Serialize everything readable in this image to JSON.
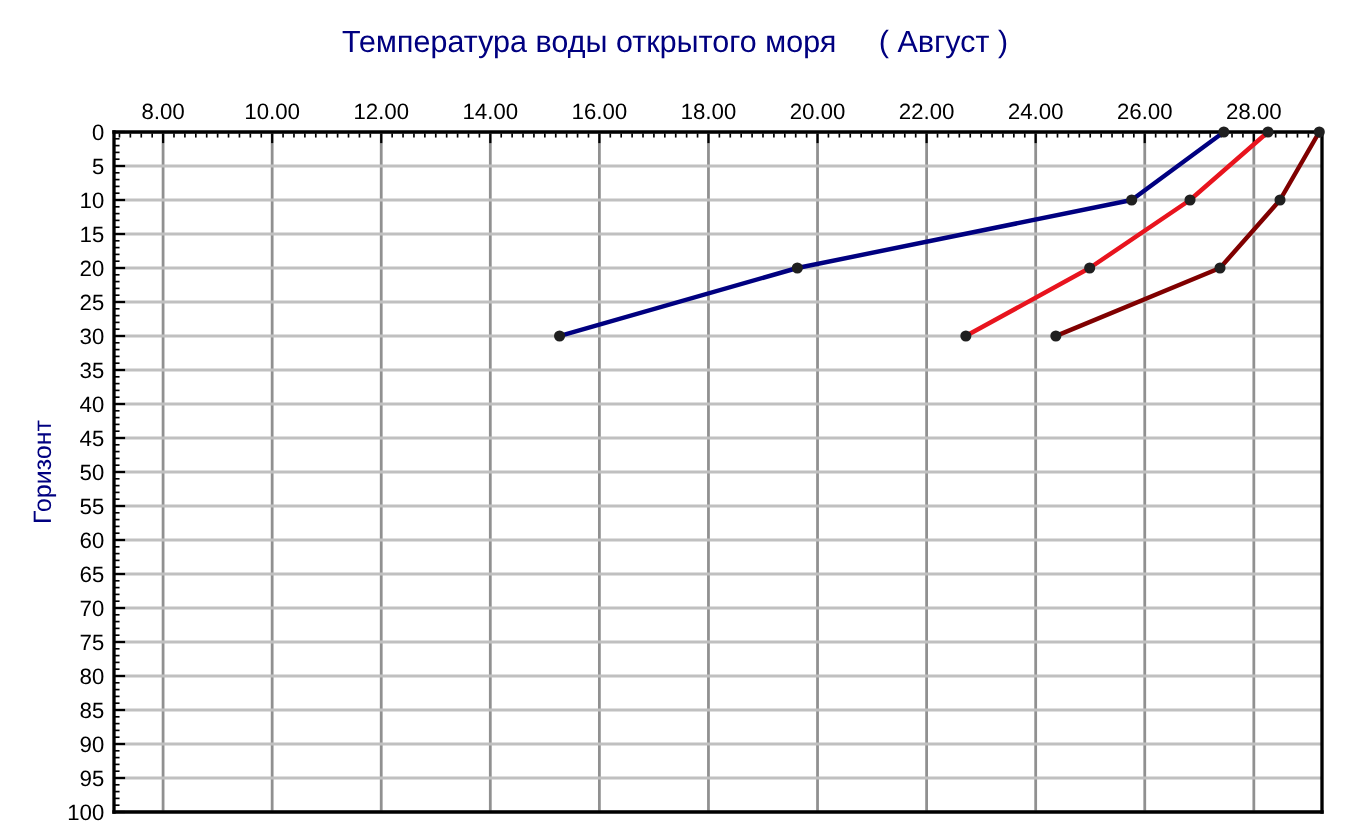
{
  "chart_data": {
    "type": "line",
    "title": "Температура воды открытого моря     ( Август )",
    "ylabel": "Горизонт",
    "grid": true,
    "marker": "circle",
    "line_style": "solid",
    "xlim": [
      7.1,
      29.25
    ],
    "ylim": [
      100,
      0
    ],
    "xticks": [
      {
        "value": 8,
        "label": "8.00"
      },
      {
        "value": 10,
        "label": "10.00"
      },
      {
        "value": 12,
        "label": "12.00"
      },
      {
        "value": 14,
        "label": "14.00"
      },
      {
        "value": 16,
        "label": "16.00"
      },
      {
        "value": 18,
        "label": "18.00"
      },
      {
        "value": 20,
        "label": "20.00"
      },
      {
        "value": 22,
        "label": "22.00"
      },
      {
        "value": 24,
        "label": "24.00"
      },
      {
        "value": 26,
        "label": "26.00"
      },
      {
        "value": 28,
        "label": "28.00"
      }
    ],
    "yticks": [
      0,
      5,
      10,
      15,
      20,
      25,
      30,
      35,
      40,
      45,
      50,
      55,
      60,
      65,
      70,
      75,
      80,
      85,
      90,
      95,
      100
    ],
    "series": [
      {
        "color": "#000080",
        "x": [
          27.45,
          25.76,
          19.63,
          15.27
        ],
        "values": [
          0,
          10,
          20,
          30
        ]
      },
      {
        "color": "#e8141e",
        "x": [
          28.26,
          26.83,
          24.99,
          22.72
        ],
        "values": [
          0,
          10,
          20,
          30
        ]
      },
      {
        "color": "#800000",
        "x": [
          29.2,
          28.48,
          27.38,
          24.37
        ],
        "values": [
          0,
          10,
          20,
          30
        ]
      }
    ]
  }
}
